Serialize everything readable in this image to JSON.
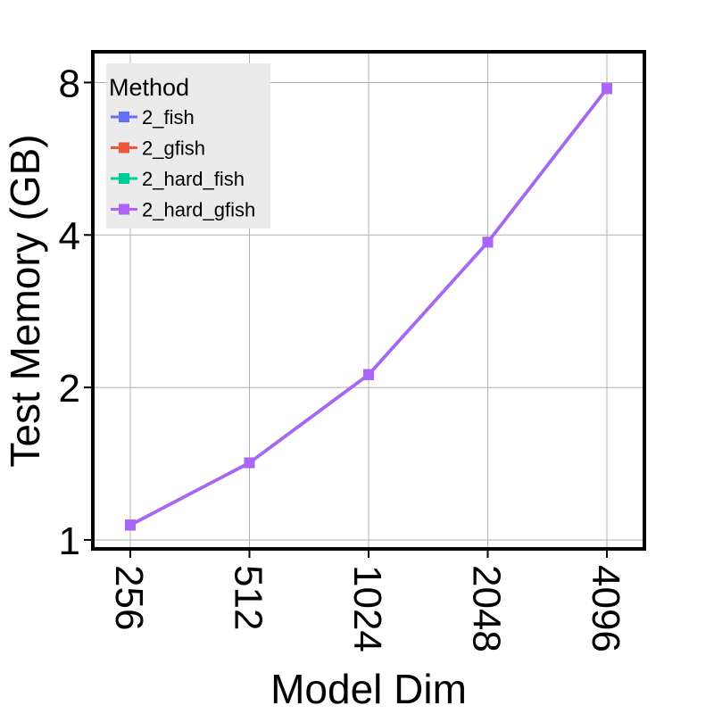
{
  "chart_data": {
    "type": "line",
    "title": "",
    "xlabel": "Model Dim",
    "ylabel": "Test Memory (GB)",
    "x_scale": "log2",
    "y_scale": "log2",
    "categories": [
      "256",
      "512",
      "1024",
      "2048",
      "4096"
    ],
    "x": [
      256,
      512,
      1024,
      2048,
      4096
    ],
    "yticks": [
      1,
      2,
      4,
      8
    ],
    "ylim": [
      0.96,
      9.2
    ],
    "grid": true,
    "legend": {
      "title": "Method",
      "placement": "top-left"
    },
    "series": [
      {
        "name": "2_fish",
        "color": "#636efa",
        "values": [
          1.07,
          1.42,
          2.12,
          3.87,
          7.78
        ]
      },
      {
        "name": "2_gfish",
        "color": "#ef553b",
        "values": [
          1.07,
          1.42,
          2.12,
          3.87,
          7.78
        ]
      },
      {
        "name": "2_hard_fish",
        "color": "#00cc96",
        "values": [
          1.07,
          1.42,
          2.12,
          3.87,
          7.78
        ]
      },
      {
        "name": "2_hard_gfish",
        "color": "#ab63fa",
        "values": [
          1.07,
          1.42,
          2.12,
          3.87,
          7.78
        ]
      }
    ]
  }
}
